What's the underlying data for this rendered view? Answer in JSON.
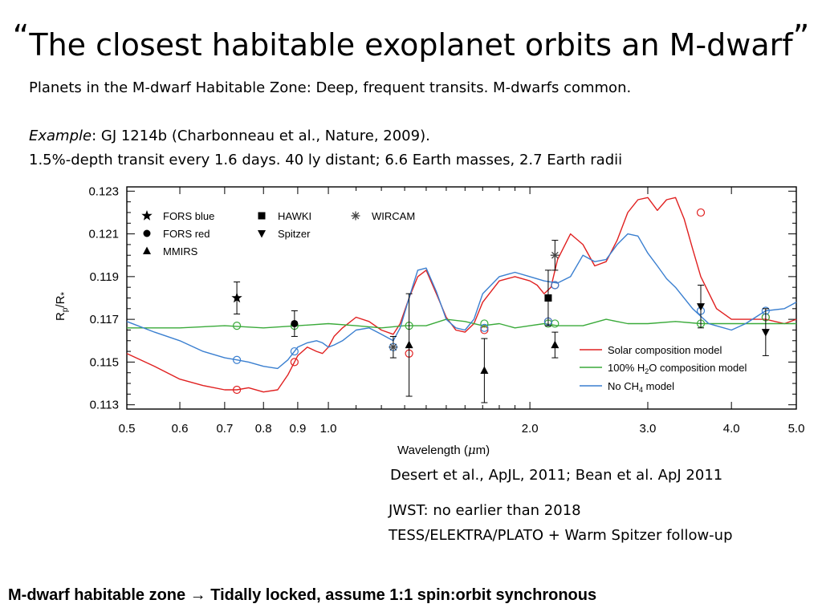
{
  "slide": {
    "title_open_quote": "“",
    "title": "The closest habitable exoplanet orbits an M-dwarf",
    "title_close_quote": "”",
    "line1": "Planets in the M-dwarf Habitable Zone: Deep, frequent transits. M-dwarfs common.",
    "example_label": "Example",
    "example_text": ": GJ 1214b (Charbonneau et al., Nature, 2009).",
    "line3": "1.5%-depth transit every 1.6 days. 40 ly distant; 6.6 Earth masses, 2.7 Earth radii",
    "citation": "Desert et al., ApJL, 2011; Bean et al. ApJ 2011",
    "jwst": "JWST: no earlier than 2018",
    "tess": "TESS/ELEKTRA/PLATO  + Warm Spitzer follow-up",
    "footer": "M-dwarf habitable zone → Tidally locked, assume 1:1 spin:orbit synchronous"
  },
  "chart_data": {
    "type": "line",
    "xscale": "log",
    "xlabel_prefix": "Wavelength  (",
    "xlabel_mu": "μ",
    "xlabel_suffix": "m)",
    "ylabel_R": "R",
    "ylabel_p": "p",
    "ylabel_slash": "/R",
    "ylabel_star": "*",
    "xlim": [
      0.5,
      5.0
    ],
    "ylim": [
      0.1128,
      0.1232
    ],
    "xticks": [
      {
        "v": 0.5,
        "label": "0.5"
      },
      {
        "v": 0.6,
        "label": "0.6"
      },
      {
        "v": 0.7,
        "label": "0.7"
      },
      {
        "v": 0.8,
        "label": "0.8"
      },
      {
        "v": 0.9,
        "label": "0.9"
      },
      {
        "v": 1.0,
        "label": "1.0"
      },
      {
        "v": 2.0,
        "label": "2.0"
      },
      {
        "v": 3.0,
        "label": "3.0"
      },
      {
        "v": 4.0,
        "label": "4.0"
      },
      {
        "v": 5.0,
        "label": "5.0"
      }
    ],
    "xminor": [
      1.1,
      1.2,
      1.3,
      1.4,
      1.5,
      1.6,
      1.7,
      1.8,
      1.9
    ],
    "yticks": [
      {
        "v": 0.113,
        "label": "0.113"
      },
      {
        "v": 0.115,
        "label": "0.115"
      },
      {
        "v": 0.117,
        "label": "0.117"
      },
      {
        "v": 0.119,
        "label": "0.119"
      },
      {
        "v": 0.121,
        "label": "0.121"
      },
      {
        "v": 0.123,
        "label": "0.123"
      }
    ],
    "yminor": [
      0.1135,
      0.114,
      0.1145,
      0.1155,
      0.116,
      0.1165,
      0.1175,
      0.118,
      0.1185,
      0.1195,
      0.12,
      0.1205,
      0.1215,
      0.122,
      0.1225
    ],
    "series": [
      {
        "name": "Solar composition model",
        "color": "#e02020",
        "x": [
          0.5,
          0.55,
          0.6,
          0.65,
          0.7,
          0.73,
          0.76,
          0.8,
          0.84,
          0.87,
          0.9,
          0.93,
          0.96,
          0.98,
          1.0,
          1.02,
          1.05,
          1.1,
          1.15,
          1.2,
          1.25,
          1.28,
          1.32,
          1.36,
          1.4,
          1.45,
          1.5,
          1.55,
          1.6,
          1.65,
          1.7,
          1.8,
          1.9,
          2.0,
          2.05,
          2.1,
          2.15,
          2.2,
          2.3,
          2.4,
          2.5,
          2.6,
          2.7,
          2.8,
          2.9,
          3.0,
          3.1,
          3.2,
          3.3,
          3.4,
          3.5,
          3.6,
          3.8,
          4.0,
          4.2,
          4.5,
          4.8,
          5.0
        ],
        "y": [
          0.1154,
          0.1148,
          0.1142,
          0.1139,
          0.1137,
          0.1137,
          0.1138,
          0.1136,
          0.1137,
          0.1144,
          0.1153,
          0.1157,
          0.1155,
          0.1154,
          0.1157,
          0.1162,
          0.1166,
          0.1171,
          0.1169,
          0.1165,
          0.1163,
          0.1168,
          0.118,
          0.119,
          0.1193,
          0.1182,
          0.1171,
          0.1165,
          0.1164,
          0.1168,
          0.1178,
          0.1188,
          0.119,
          0.1188,
          0.1186,
          0.1182,
          0.1185,
          0.1198,
          0.121,
          0.1205,
          0.1195,
          0.1197,
          0.1207,
          0.122,
          0.1226,
          0.1227,
          0.1221,
          0.1226,
          0.1227,
          0.1217,
          0.1203,
          0.119,
          0.1175,
          0.117,
          0.117,
          0.117,
          0.1168,
          0.117
        ]
      },
      {
        "name": "100% H2O composition model",
        "label_pre": "100% H",
        "label_sub": "2",
        "label_post": "O composition model",
        "color": "#3aaa3a",
        "x": [
          0.5,
          0.6,
          0.7,
          0.8,
          0.9,
          1.0,
          1.1,
          1.2,
          1.3,
          1.4,
          1.5,
          1.6,
          1.7,
          1.8,
          1.9,
          2.0,
          2.1,
          2.2,
          2.4,
          2.6,
          2.8,
          3.0,
          3.3,
          3.6,
          4.0,
          4.5,
          5.0
        ],
        "y": [
          0.1166,
          0.1166,
          0.1167,
          0.1166,
          0.1167,
          0.1168,
          0.1167,
          0.1166,
          0.1167,
          0.1167,
          0.117,
          0.1169,
          0.1167,
          0.1168,
          0.1166,
          0.1167,
          0.1168,
          0.1167,
          0.1167,
          0.117,
          0.1168,
          0.1168,
          0.1169,
          0.1168,
          0.1168,
          0.1168,
          0.1168
        ]
      },
      {
        "name": "No CH4 model",
        "label_pre": "No CH",
        "label_sub": "4",
        "label_post": " model",
        "color": "#3a7fd0",
        "x": [
          0.5,
          0.55,
          0.6,
          0.65,
          0.7,
          0.73,
          0.76,
          0.8,
          0.84,
          0.87,
          0.9,
          0.93,
          0.96,
          0.98,
          1.0,
          1.02,
          1.05,
          1.1,
          1.15,
          1.2,
          1.25,
          1.28,
          1.32,
          1.36,
          1.4,
          1.45,
          1.5,
          1.55,
          1.6,
          1.65,
          1.7,
          1.8,
          1.9,
          2.0,
          2.1,
          2.2,
          2.3,
          2.4,
          2.5,
          2.6,
          2.7,
          2.8,
          2.9,
          3.0,
          3.1,
          3.2,
          3.3,
          3.5,
          3.7,
          4.0,
          4.2,
          4.5,
          4.8,
          5.0
        ],
        "y": [
          0.1169,
          0.1164,
          0.116,
          0.1155,
          0.1152,
          0.1151,
          0.115,
          0.1148,
          0.1147,
          0.1151,
          0.1157,
          0.1159,
          0.116,
          0.1159,
          0.1157,
          0.1158,
          0.116,
          0.1165,
          0.1166,
          0.1163,
          0.116,
          0.1166,
          0.118,
          0.1193,
          0.1194,
          0.1183,
          0.117,
          0.1166,
          0.1165,
          0.117,
          0.1182,
          0.119,
          0.1192,
          0.119,
          0.1188,
          0.1187,
          0.119,
          0.12,
          0.1197,
          0.1198,
          0.1205,
          0.121,
          0.1209,
          0.1201,
          0.1195,
          0.1189,
          0.1185,
          0.1175,
          0.1168,
          0.1165,
          0.1168,
          0.1174,
          0.1175,
          0.1178
        ]
      }
    ],
    "markers": [
      {
        "name": "FORS blue",
        "shape": "star"
      },
      {
        "name": "HAWKI",
        "shape": "square"
      },
      {
        "name": "WIRCAM",
        "shape": "asterisk"
      },
      {
        "name": "FORS red",
        "shape": "circle"
      },
      {
        "name": "Spitzer",
        "shape": "tri-down"
      },
      {
        "name": "MMIRS",
        "shape": "tri-up"
      }
    ],
    "observations": [
      {
        "inst": "FORS blue",
        "x": 0.73,
        "y": 0.118,
        "err": 0.00075
      },
      {
        "inst": "FORS red",
        "x": 0.89,
        "y": 0.1168,
        "err": 0.0006
      },
      {
        "inst": "WIRCAM",
        "x": 1.25,
        "y": 0.1157,
        "err": 0.0005
      },
      {
        "inst": "MMIRS",
        "x": 1.32,
        "y": 0.1158,
        "err": 0.0024
      },
      {
        "inst": "MMIRS",
        "x": 1.71,
        "y": 0.1146,
        "err": 0.0015
      },
      {
        "inst": "HAWKI",
        "x": 2.13,
        "y": 0.118,
        "err": 0.0013
      },
      {
        "inst": "WIRCAM",
        "x": 2.18,
        "y": 0.12,
        "err": 0.0007
      },
      {
        "inst": "MMIRS",
        "x": 2.18,
        "y": 0.1158,
        "err": 0.0006
      },
      {
        "inst": "Spitzer",
        "x": 3.6,
        "y": 0.1176,
        "err": 0.001
      },
      {
        "inst": "Spitzer",
        "x": 4.5,
        "y": 0.1164,
        "err": 0.0011
      }
    ],
    "model_points": [
      {
        "series": "Solar composition model",
        "x": [
          0.73,
          0.89,
          1.32,
          1.71,
          2.13,
          2.18,
          3.6,
          4.5
        ],
        "y": [
          0.1137,
          0.115,
          0.1154,
          0.1165,
          0.1169,
          0.1186,
          0.122,
          0.1171
        ]
      },
      {
        "series": "100% H2O composition model",
        "x": [
          0.73,
          0.89,
          1.32,
          1.71,
          2.13,
          2.18,
          3.6,
          4.5
        ],
        "y": [
          0.1167,
          0.1167,
          0.1167,
          0.1168,
          0.1168,
          0.1168,
          0.1168,
          0.1171
        ]
      },
      {
        "series": "No CH4 model",
        "x": [
          0.73,
          0.89,
          1.25,
          1.71,
          2.13,
          2.18,
          3.6,
          4.5
        ],
        "y": [
          0.1151,
          0.1155,
          0.1157,
          0.1166,
          0.1169,
          0.1186,
          0.1174,
          0.1174
        ]
      }
    ]
  }
}
